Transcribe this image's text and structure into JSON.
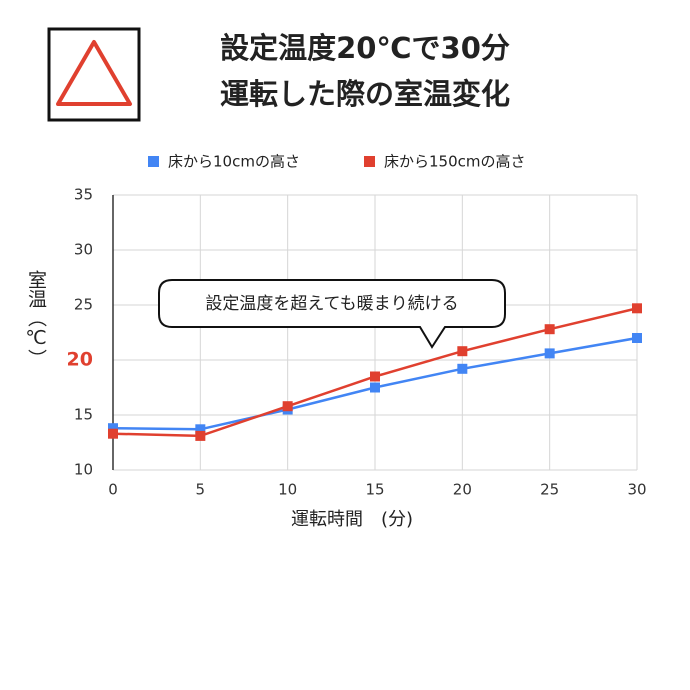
{
  "chart_data": {
    "type": "line",
    "title": [
      "設定温度20℃で30分",
      "運転した際の室温変化"
    ],
    "x_label": "運転時間　(分)",
    "y_label": "室温（℃）",
    "annotation": "設定温度を超えても暖まり続ける",
    "x": [
      0,
      5,
      10,
      15,
      20,
      25,
      30
    ],
    "series": [
      {
        "name": "床から10cmの高さ",
        "color": "#4285f4",
        "values": [
          13.8,
          13.7,
          15.5,
          17.5,
          19.2,
          20.6,
          22.0
        ]
      },
      {
        "name": "床から150cmの高さ",
        "color": "#e0402f",
        "values": [
          13.3,
          13.1,
          15.8,
          18.5,
          20.8,
          22.8,
          24.7
        ]
      }
    ],
    "xlim": [
      0,
      30
    ],
    "xticks": [
      0,
      5,
      10,
      15,
      20,
      25,
      30
    ],
    "ylim": [
      10,
      35
    ],
    "yticks": [
      10,
      15,
      20,
      25,
      30,
      35
    ],
    "highlight_ytick": 20,
    "highlight_color": "#e0402f",
    "grid": true,
    "legend": "top"
  }
}
